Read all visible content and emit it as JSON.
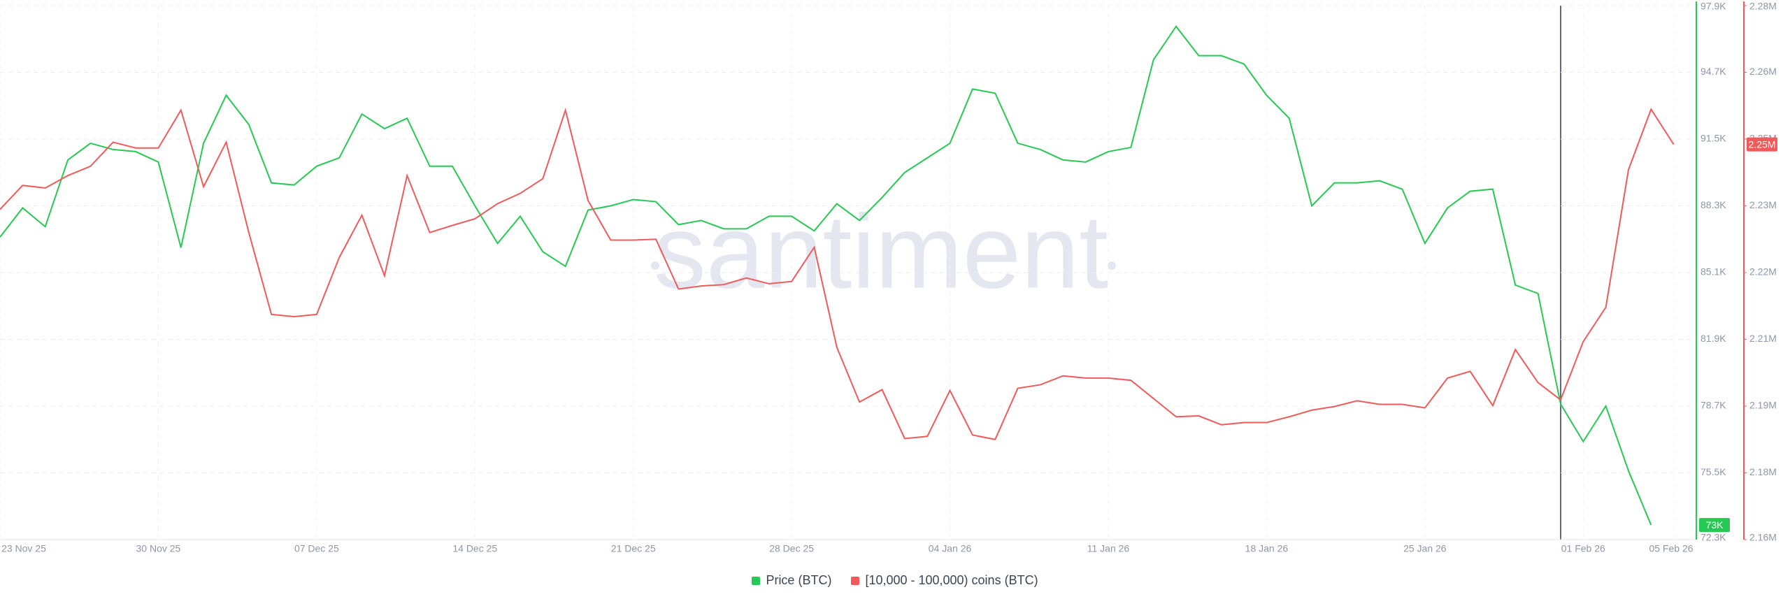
{
  "chart_data": {
    "type": "line",
    "watermark": "santiment",
    "x": [
      "2025-11-23",
      "2025-11-24",
      "2025-11-25",
      "2025-11-26",
      "2025-11-27",
      "2025-11-28",
      "2025-11-29",
      "2025-11-30",
      "2025-12-01",
      "2025-12-02",
      "2025-12-03",
      "2025-12-04",
      "2025-12-05",
      "2025-12-06",
      "2025-12-07",
      "2025-12-08",
      "2025-12-09",
      "2025-12-10",
      "2025-12-11",
      "2025-12-12",
      "2025-12-13",
      "2025-12-14",
      "2025-12-15",
      "2025-12-16",
      "2025-12-17",
      "2025-12-18",
      "2025-12-19",
      "2025-12-20",
      "2025-12-21",
      "2025-12-22",
      "2025-12-23",
      "2025-12-24",
      "2025-12-25",
      "2025-12-26",
      "2025-12-27",
      "2025-12-28",
      "2025-12-29",
      "2025-12-30",
      "2025-12-31",
      "2026-01-01",
      "2026-01-02",
      "2026-01-03",
      "2026-01-04",
      "2026-01-05",
      "2026-01-06",
      "2026-01-07",
      "2026-01-08",
      "2026-01-09",
      "2026-01-10",
      "2026-01-11",
      "2026-01-12",
      "2026-01-13",
      "2026-01-14",
      "2026-01-15",
      "2026-01-16",
      "2026-01-17",
      "2026-01-18",
      "2026-01-19",
      "2026-01-20",
      "2026-01-21",
      "2026-01-22",
      "2026-01-23",
      "2026-01-24",
      "2026-01-25",
      "2026-01-26",
      "2026-01-27",
      "2026-01-28",
      "2026-01-29",
      "2026-01-30",
      "2026-01-31",
      "2026-02-01",
      "2026-02-02",
      "2026-02-03",
      "2026-02-04",
      "2026-02-05"
    ],
    "xlim": [
      "2025-11-23",
      "2026-02-06"
    ],
    "xticks": [
      {
        "value": "2025-11-23",
        "label": "23 Nov 25"
      },
      {
        "value": "2025-11-30",
        "label": "30 Nov 25"
      },
      {
        "value": "2025-12-07",
        "label": "07 Dec 25"
      },
      {
        "value": "2025-12-14",
        "label": "14 Dec 25"
      },
      {
        "value": "2025-12-21",
        "label": "21 Dec 25"
      },
      {
        "value": "2025-12-28",
        "label": "28 Dec 25"
      },
      {
        "value": "2026-01-04",
        "label": "04 Jan 26"
      },
      {
        "value": "2026-01-11",
        "label": "11 Jan 26"
      },
      {
        "value": "2026-01-18",
        "label": "18 Jan 26"
      },
      {
        "value": "2026-01-25",
        "label": "25 Jan 26"
      },
      {
        "value": "2026-02-01",
        "label": "01 Feb 26"
      },
      {
        "value": "2026-02-05",
        "label": "05 Feb 26"
      }
    ],
    "ylim": [
      72300,
      97900
    ],
    "yticks": [
      {
        "value": 72300,
        "label": "72.3K"
      },
      {
        "value": 75500,
        "label": "75.5K"
      },
      {
        "value": 78700,
        "label": "78.7K"
      },
      {
        "value": 81900,
        "label": "81.9K"
      },
      {
        "value": 85100,
        "label": "85.1K"
      },
      {
        "value": 88300,
        "label": "88.3K"
      },
      {
        "value": 91500,
        "label": "91.5K"
      },
      {
        "value": 94700,
        "label": "94.7K"
      },
      {
        "value": 97900,
        "label": "97.9K"
      }
    ],
    "y2lim": [
      2160000,
      2280000
    ],
    "y2ticks": [
      {
        "value": 2160000,
        "label": "2.16M"
      },
      {
        "value": 2175000,
        "label": "2.18M"
      },
      {
        "value": 2190000,
        "label": "2.19M"
      },
      {
        "value": 2205000,
        "label": "2.21M"
      },
      {
        "value": 2220000,
        "label": "2.22M"
      },
      {
        "value": 2235000,
        "label": "2.23M"
      },
      {
        "value": 2250000,
        "label": "2.25M"
      },
      {
        "value": 2265000,
        "label": "2.26M"
      },
      {
        "value": 2280000,
        "label": "2.28M"
      }
    ],
    "grid": true,
    "legend": "bottom",
    "series": [
      {
        "name": "Price (BTC)",
        "color": "#26c953",
        "axis": "y",
        "values": [
          86800,
          88200,
          87300,
          90500,
          91300,
          91000,
          90900,
          90400,
          86300,
          91300,
          93600,
          92200,
          89400,
          89300,
          90200,
          90600,
          92700,
          92000,
          92500,
          90200,
          90200,
          88300,
          86500,
          87800,
          86100,
          85400,
          88100,
          88300,
          88600,
          88500,
          87400,
          87600,
          87200,
          87200,
          87800,
          87800,
          87100,
          88400,
          87600,
          88700,
          89900,
          90600,
          91300,
          93900,
          93700,
          91300,
          91000,
          90500,
          90400,
          90900,
          91100,
          95300,
          96900,
          95500,
          95500,
          95100,
          93600,
          92500,
          88300,
          89400,
          89400,
          89500,
          89100,
          86500,
          88200,
          89000,
          89100,
          84500,
          84100,
          78800,
          77000,
          78700,
          75600,
          73000,
          null
        ],
        "value_labels": [
          null,
          null,
          null,
          null,
          null,
          null,
          null,
          null,
          null,
          null,
          null,
          null,
          null,
          null,
          null,
          null,
          null,
          null,
          null,
          null,
          null,
          null,
          null,
          null,
          null,
          null,
          null,
          null,
          null,
          null,
          null,
          null,
          null,
          null,
          null,
          null,
          null,
          null,
          null,
          null,
          null,
          null,
          null,
          null,
          null,
          null,
          null,
          null,
          null,
          null,
          null,
          null,
          null,
          null,
          null,
          null,
          null,
          null,
          null,
          null,
          null,
          null,
          null,
          null,
          null,
          null,
          null,
          null,
          null,
          null,
          null,
          null,
          null,
          "73K",
          null
        ]
      },
      {
        "name": "[10,000 - 100,000) coins (BTC)",
        "color": "#f05a5a",
        "axis": "y2",
        "values": [
          2234200,
          2239600,
          2239000,
          2241800,
          2243900,
          2249300,
          2248000,
          2248000,
          2256500,
          2239300,
          2249300,
          2229000,
          2210600,
          2210100,
          2210600,
          2223400,
          2232900,
          2219300,
          2241800,
          2229000,
          2230600,
          2232100,
          2235500,
          2237800,
          2241100,
          2256500,
          2236200,
          2227300,
          2227300,
          2227500,
          2216300,
          2217000,
          2217300,
          2218800,
          2217500,
          2218000,
          2225700,
          2203200,
          2190900,
          2193700,
          2182700,
          2183200,
          2193500,
          2183500,
          2182500,
          2194000,
          2194800,
          2196800,
          2196300,
          2196300,
          2195800,
          2191700,
          2187600,
          2187800,
          2185800,
          2186300,
          2186300,
          2187600,
          2189100,
          2189900,
          2191200,
          2190400,
          2190400,
          2189600,
          2196300,
          2197800,
          2190100,
          2202700,
          2195300,
          2191400,
          2204500,
          2212200,
          2243100,
          2256700,
          2248800
        ],
        "value_labels": [
          null,
          null,
          null,
          null,
          null,
          null,
          null,
          null,
          null,
          null,
          null,
          null,
          null,
          null,
          null,
          null,
          null,
          null,
          null,
          null,
          null,
          null,
          null,
          null,
          null,
          null,
          null,
          null,
          null,
          null,
          null,
          null,
          null,
          null,
          null,
          null,
          null,
          null,
          null,
          null,
          null,
          null,
          null,
          null,
          null,
          null,
          null,
          null,
          null,
          null,
          null,
          null,
          null,
          null,
          null,
          null,
          null,
          null,
          null,
          null,
          null,
          null,
          null,
          null,
          null,
          null,
          null,
          null,
          null,
          null,
          null,
          null,
          null,
          null,
          "2.25M"
        ]
      }
    ]
  }
}
